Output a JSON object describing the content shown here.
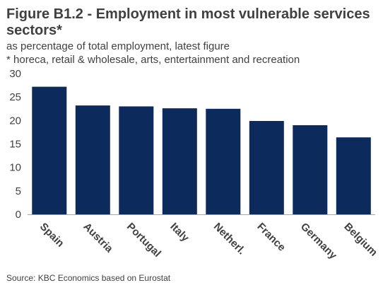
{
  "chart_data": {
    "type": "bar",
    "title_line1": "Figure B1.2 - Employment in most vulnerable services",
    "title_line2": "sectors*",
    "subtitle": "as percentage of total employment, latest figure",
    "note": "* horeca, retail & wholesale, arts, entertainment and recreation",
    "source": "Source: KBC Economics based on Eurostat",
    "categories": [
      "Spain",
      "Austria",
      "Portugal",
      "Italy",
      "Netherl.",
      "France",
      "Germany",
      "Belgium"
    ],
    "values": [
      27.2,
      23.2,
      23.0,
      22.6,
      22.5,
      19.9,
      19.0,
      16.4
    ],
    "ylim": [
      0,
      30
    ],
    "yticks": [
      0,
      5,
      10,
      15,
      20,
      25,
      30
    ],
    "grid": false,
    "legend": "none",
    "bar_color": "#0c2a5b",
    "axis_color": "#a6a6a6"
  }
}
